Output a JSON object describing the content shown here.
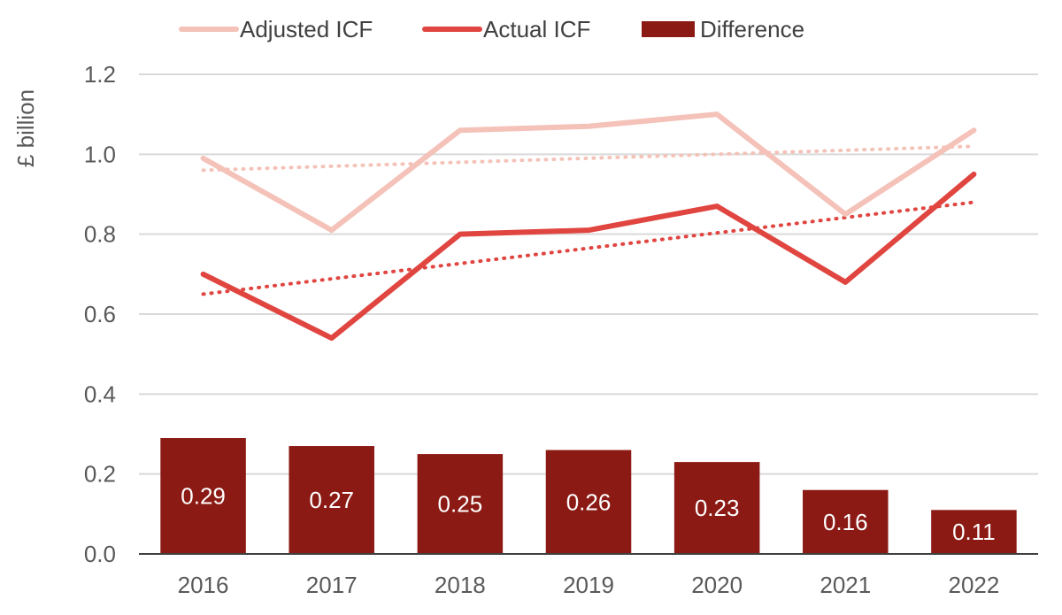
{
  "chart_data": {
    "type": "bar+line",
    "categories": [
      "2016",
      "2017",
      "2018",
      "2019",
      "2020",
      "2021",
      "2022"
    ],
    "ylabel": "£ billion",
    "ylim": [
      0,
      1.2
    ],
    "yticks": [
      "0.0",
      "0.2",
      "0.4",
      "0.6",
      "0.8",
      "1.0",
      "1.2"
    ],
    "grid": true,
    "legend_position": "top",
    "bars": {
      "name": "Difference",
      "color": "#8B1A14",
      "values": [
        0.29,
        0.27,
        0.25,
        0.26,
        0.23,
        0.16,
        0.11
      ],
      "labels": [
        "0.29",
        "0.27",
        "0.25",
        "0.26",
        "0.23",
        "0.16",
        "0.11"
      ]
    },
    "series": [
      {
        "name": "Adjusted ICF",
        "color": "#F4C2B8",
        "values": [
          0.99,
          0.81,
          1.06,
          1.07,
          1.1,
          0.85,
          1.06
        ],
        "trendline": {
          "style": "dotted",
          "start": 0.96,
          "end": 1.02
        }
      },
      {
        "name": "Actual ICF",
        "color": "#E04540",
        "values": [
          0.7,
          0.54,
          0.8,
          0.81,
          0.87,
          0.68,
          0.95
        ],
        "trendline": {
          "style": "dotted",
          "start": 0.65,
          "end": 0.88
        }
      }
    ]
  }
}
